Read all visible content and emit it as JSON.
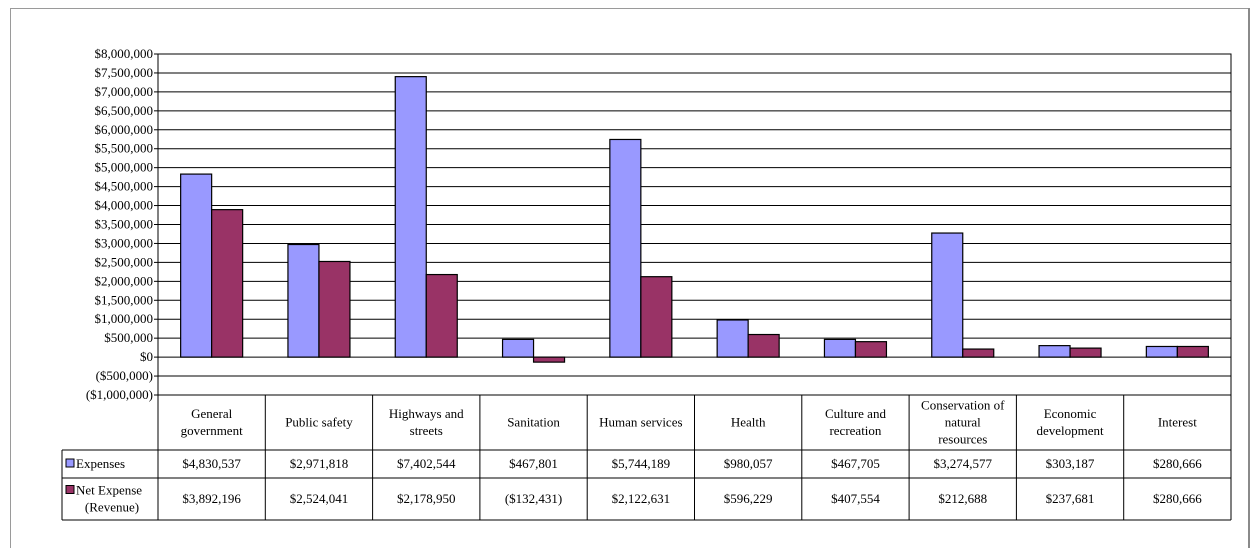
{
  "chart_data": {
    "type": "bar",
    "categories": [
      [
        "General",
        "government"
      ],
      [
        "Public safety"
      ],
      [
        "Highways and",
        "streets"
      ],
      [
        "Sanitation"
      ],
      [
        "Human services"
      ],
      [
        "Health"
      ],
      [
        "Culture and",
        "recreation"
      ],
      [
        "Conservation of",
        "natural",
        "resources"
      ],
      [
        "Economic",
        "development"
      ],
      [
        "Interest"
      ]
    ],
    "series": [
      {
        "name": [
          "Expenses"
        ],
        "color": "#9999ff",
        "values": [
          4830537,
          2971818,
          7402544,
          467801,
          5744189,
          980057,
          467705,
          3274577,
          303187,
          280666
        ],
        "labels": [
          "$4,830,537",
          "$2,971,818",
          "$7,402,544",
          "$467,801",
          "$5,744,189",
          "$980,057",
          "$467,705",
          "$3,274,577",
          "$303,187",
          "$280,666"
        ]
      },
      {
        "name": [
          "Net Expense",
          "(Revenue)"
        ],
        "color": "#993366",
        "values": [
          3892196,
          2524041,
          2178950,
          -132431,
          2122631,
          596229,
          407554,
          212688,
          237681,
          280666
        ],
        "labels": [
          "$3,892,196",
          "$2,524,041",
          "$2,178,950",
          "($132,431)",
          "$2,122,631",
          "$596,229",
          "$407,554",
          "$212,688",
          "$237,681",
          "$280,666"
        ]
      }
    ],
    "y_ticks": [
      {
        "value": 8000000,
        "label": "$8,000,000"
      },
      {
        "value": 7500000,
        "label": "$7,500,000"
      },
      {
        "value": 7000000,
        "label": "$7,000,000"
      },
      {
        "value": 6500000,
        "label": "$6,500,000"
      },
      {
        "value": 6000000,
        "label": "$6,000,000"
      },
      {
        "value": 5500000,
        "label": "$5,500,000"
      },
      {
        "value": 5000000,
        "label": "$5,000,000"
      },
      {
        "value": 4500000,
        "label": "$4,500,000"
      },
      {
        "value": 4000000,
        "label": "$4,000,000"
      },
      {
        "value": 3500000,
        "label": "$3,500,000"
      },
      {
        "value": 3000000,
        "label": "$3,000,000"
      },
      {
        "value": 2500000,
        "label": "$2,500,000"
      },
      {
        "value": 2000000,
        "label": "$2,000,000"
      },
      {
        "value": 1500000,
        "label": "$1,500,000"
      },
      {
        "value": 1000000,
        "label": "$1,000,000"
      },
      {
        "value": 500000,
        "label": "$500,000"
      },
      {
        "value": 0,
        "label": "$0"
      },
      {
        "value": -500000,
        "label": "($500,000)"
      },
      {
        "value": -1000000,
        "label": "($1,000,000)"
      }
    ],
    "ylim": [
      -1000000,
      8000000
    ],
    "grid": true,
    "legend": "data-table"
  }
}
